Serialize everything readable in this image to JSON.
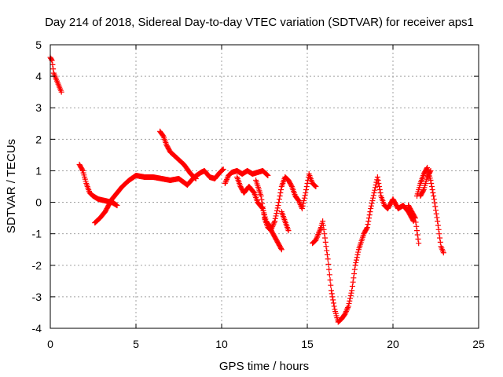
{
  "chart_data": {
    "type": "scatter",
    "title": "Day 214 of 2018, Sidereal Day-to-day VTEC variation (SDTVAR) for receiver aps1",
    "xlabel": "GPS time / hours",
    "ylabel": "SDTVAR / TECUs",
    "xlim": [
      0,
      25
    ],
    "ylim": [
      -4,
      5
    ],
    "xticks": [
      "0",
      "5",
      "10",
      "15",
      "20",
      "25"
    ],
    "yticks": [
      "-4",
      "-3",
      "-2",
      "-1",
      "0",
      "1",
      "2",
      "3",
      "4",
      "5"
    ],
    "grid": true,
    "marker": "+",
    "color": "#ff0000",
    "series": [
      {
        "name": "sdtvar",
        "segments": [
          [
            [
              0.0,
              4.6
            ],
            [
              0.1,
              4.5
            ],
            [
              0.2,
              4.1
            ],
            [
              0.35,
              3.9
            ],
            [
              0.5,
              3.7
            ],
            [
              0.65,
              3.5
            ]
          ],
          [
            [
              1.7,
              1.2
            ],
            [
              1.9,
              1.0
            ],
            [
              2.1,
              0.6
            ],
            [
              2.3,
              0.3
            ],
            [
              2.5,
              0.2
            ],
            [
              2.8,
              0.1
            ],
            [
              3.2,
              0.05
            ],
            [
              3.6,
              0.0
            ],
            [
              3.9,
              -0.1
            ]
          ],
          [
            [
              2.6,
              -0.65
            ],
            [
              2.9,
              -0.5
            ],
            [
              3.2,
              -0.3
            ],
            [
              3.4,
              -0.1
            ],
            [
              3.6,
              0.1
            ],
            [
              3.9,
              0.3
            ],
            [
              4.2,
              0.5
            ],
            [
              4.6,
              0.7
            ],
            [
              5.0,
              0.85
            ],
            [
              5.5,
              0.8
            ],
            [
              6.0,
              0.8
            ],
            [
              6.5,
              0.75
            ],
            [
              7.0,
              0.7
            ],
            [
              7.5,
              0.75
            ],
            [
              8.0,
              0.55
            ],
            [
              8.4,
              0.8
            ],
            [
              8.8,
              0.95
            ],
            [
              9.0,
              1.0
            ],
            [
              9.3,
              0.8
            ],
            [
              9.6,
              0.75
            ],
            [
              9.9,
              0.95
            ],
            [
              10.1,
              1.05
            ]
          ],
          [
            [
              6.4,
              2.25
            ],
            [
              6.6,
              2.1
            ],
            [
              6.8,
              1.8
            ],
            [
              7.0,
              1.6
            ],
            [
              7.4,
              1.4
            ],
            [
              7.8,
              1.2
            ],
            [
              8.2,
              0.9
            ],
            [
              8.5,
              0.75
            ]
          ],
          [
            [
              10.2,
              0.6
            ],
            [
              10.4,
              0.85
            ],
            [
              10.6,
              0.95
            ],
            [
              10.9,
              1.0
            ],
            [
              11.2,
              0.9
            ],
            [
              11.5,
              1.0
            ],
            [
              11.8,
              0.9
            ],
            [
              12.1,
              0.95
            ],
            [
              12.4,
              1.0
            ],
            [
              12.7,
              0.85
            ]
          ],
          [
            [
              10.9,
              0.8
            ],
            [
              11.1,
              0.5
            ],
            [
              11.3,
              0.3
            ],
            [
              11.6,
              0.5
            ],
            [
              11.9,
              0.3
            ],
            [
              12.1,
              0.0
            ],
            [
              12.4,
              -0.2
            ],
            [
              12.6,
              -0.6
            ],
            [
              12.9,
              -0.85
            ],
            [
              13.1,
              -0.6
            ],
            [
              13.3,
              -0.1
            ],
            [
              13.5,
              0.5
            ],
            [
              13.7,
              0.8
            ],
            [
              13.9,
              0.7
            ],
            [
              14.1,
              0.5
            ],
            [
              14.3,
              0.2
            ],
            [
              14.5,
              0.05
            ],
            [
              14.7,
              -0.2
            ],
            [
              14.9,
              0.3
            ],
            [
              15.1,
              0.9
            ],
            [
              15.3,
              0.6
            ],
            [
              15.5,
              0.5
            ]
          ],
          [
            [
              12.0,
              0.7
            ],
            [
              12.3,
              0.2
            ],
            [
              12.5,
              -0.5
            ],
            [
              12.7,
              -0.8
            ],
            [
              12.9,
              -0.9
            ],
            [
              13.1,
              -1.1
            ],
            [
              13.3,
              -1.3
            ],
            [
              13.5,
              -1.5
            ]
          ],
          [
            [
              13.5,
              -0.3
            ],
            [
              13.7,
              -0.6
            ],
            [
              13.9,
              -0.9
            ]
          ],
          [
            [
              15.3,
              -1.3
            ],
            [
              15.5,
              -1.2
            ],
            [
              15.8,
              -0.8
            ],
            [
              15.9,
              -0.6
            ],
            [
              16.0,
              -1.0
            ],
            [
              16.2,
              -1.8
            ],
            [
              16.4,
              -2.8
            ],
            [
              16.6,
              -3.4
            ],
            [
              16.8,
              -3.8
            ],
            [
              17.0,
              -3.7
            ],
            [
              17.2,
              -3.55
            ],
            [
              17.4,
              -3.3
            ],
            [
              17.6,
              -2.8
            ],
            [
              17.8,
              -2.0
            ],
            [
              18.0,
              -1.5
            ],
            [
              18.3,
              -1.0
            ],
            [
              18.5,
              -0.8
            ],
            [
              18.7,
              -0.2
            ],
            [
              18.9,
              0.3
            ],
            [
              19.1,
              0.8
            ],
            [
              19.3,
              0.2
            ],
            [
              19.5,
              -0.1
            ],
            [
              19.7,
              -0.2
            ],
            [
              20.0,
              0.1
            ],
            [
              20.3,
              -0.2
            ],
            [
              20.6,
              -0.1
            ],
            [
              20.9,
              -0.3
            ],
            [
              21.2,
              -0.6
            ]
          ],
          [
            [
              20.9,
              -0.1
            ],
            [
              21.1,
              -0.3
            ],
            [
              21.3,
              -0.5
            ],
            [
              21.5,
              -1.3
            ]
          ],
          [
            [
              21.4,
              0.2
            ],
            [
              21.6,
              0.6
            ],
            [
              21.8,
              0.9
            ],
            [
              22.0,
              1.1
            ],
            [
              22.2,
              0.7
            ],
            [
              22.4,
              0.1
            ],
            [
              22.6,
              -0.6
            ],
            [
              22.8,
              -1.4
            ],
            [
              22.95,
              -1.6
            ]
          ],
          [
            [
              21.6,
              0.2
            ],
            [
              21.8,
              0.4
            ],
            [
              22.0,
              0.8
            ],
            [
              22.2,
              1.0
            ]
          ]
        ]
      }
    ]
  }
}
